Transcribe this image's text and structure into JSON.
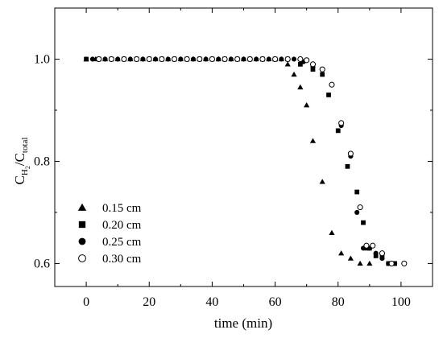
{
  "chart_data": {
    "type": "scatter",
    "title": "",
    "xlabel": "time (min)",
    "ylabel": {
      "main": "C",
      "sub1": "H",
      "sub2": "2",
      "slash": "/C",
      "sub3": "total"
    },
    "xlim": [
      -10,
      110
    ],
    "ylim": [
      0.555,
      1.1
    ],
    "xticks": [
      0,
      20,
      40,
      60,
      80,
      100
    ],
    "xtick_labels": [
      "0",
      "20",
      "40",
      "60",
      "80",
      "100"
    ],
    "yticks": [
      0.6,
      0.8,
      1.0
    ],
    "ytick_labels": [
      "0.6",
      "0.8",
      "1.0"
    ],
    "grid": false,
    "legend_position": "bottom-left",
    "series": [
      {
        "name": "0.15 cm",
        "marker": "triangle",
        "x": [
          0,
          3,
          6,
          10,
          14,
          18,
          22,
          26,
          30,
          34,
          38,
          42,
          46,
          50,
          54,
          58,
          60,
          62,
          64,
          66,
          68,
          70,
          72,
          75,
          78,
          81,
          84,
          87,
          90
        ],
        "y": [
          1.0,
          1.0,
          1.0,
          1.0,
          1.0,
          1.0,
          1.0,
          1.0,
          1.0,
          1.0,
          1.0,
          1.0,
          1.0,
          1.0,
          1.0,
          1.0,
          1.0,
          1.0,
          0.99,
          0.97,
          0.945,
          0.91,
          0.84,
          0.76,
          0.66,
          0.62,
          0.61,
          0.6,
          0.6
        ]
      },
      {
        "name": "0.20 cm",
        "marker": "square",
        "x": [
          0,
          4,
          8,
          12,
          16,
          20,
          24,
          28,
          32,
          36,
          40,
          44,
          48,
          52,
          56,
          60,
          64,
          68,
          72,
          75,
          77,
          80,
          83,
          86,
          88,
          89,
          90,
          92,
          94,
          96,
          98
        ],
        "y": [
          1.0,
          1.0,
          1.0,
          1.0,
          1.0,
          1.0,
          1.0,
          1.0,
          1.0,
          1.0,
          1.0,
          1.0,
          1.0,
          1.0,
          1.0,
          1.0,
          1.0,
          0.99,
          0.98,
          0.97,
          0.93,
          0.86,
          0.79,
          0.74,
          0.68,
          0.63,
          0.63,
          0.615,
          0.615,
          0.6,
          0.6
        ]
      },
      {
        "name": "0.25 cm",
        "marker": "circle",
        "x": [
          2,
          6,
          10,
          14,
          18,
          22,
          26,
          30,
          34,
          38,
          42,
          46,
          50,
          54,
          58,
          62,
          66,
          69,
          72,
          75,
          78,
          81,
          84,
          86,
          88,
          90,
          92,
          94,
          96,
          98
        ],
        "y": [
          1.0,
          1.0,
          1.0,
          1.0,
          1.0,
          1.0,
          1.0,
          1.0,
          1.0,
          1.0,
          1.0,
          1.0,
          1.0,
          1.0,
          1.0,
          1.0,
          1.0,
          0.995,
          0.985,
          0.98,
          0.95,
          0.87,
          0.81,
          0.7,
          0.63,
          0.63,
          0.62,
          0.61,
          0.6,
          0.6
        ]
      },
      {
        "name": "0.30 cm",
        "marker": "open-circle",
        "x": [
          4,
          8,
          12,
          16,
          20,
          24,
          28,
          32,
          36,
          40,
          44,
          48,
          52,
          56,
          60,
          64,
          68,
          70,
          72,
          75,
          78,
          81,
          84,
          87,
          89,
          91,
          94,
          97,
          101
        ],
        "y": [
          1.0,
          1.0,
          1.0,
          1.0,
          1.0,
          1.0,
          1.0,
          1.0,
          1.0,
          1.0,
          1.0,
          1.0,
          1.0,
          1.0,
          1.0,
          1.0,
          1.0,
          0.998,
          0.99,
          0.98,
          0.95,
          0.875,
          0.815,
          0.71,
          0.635,
          0.635,
          0.62,
          0.6,
          0.6
        ]
      }
    ]
  }
}
